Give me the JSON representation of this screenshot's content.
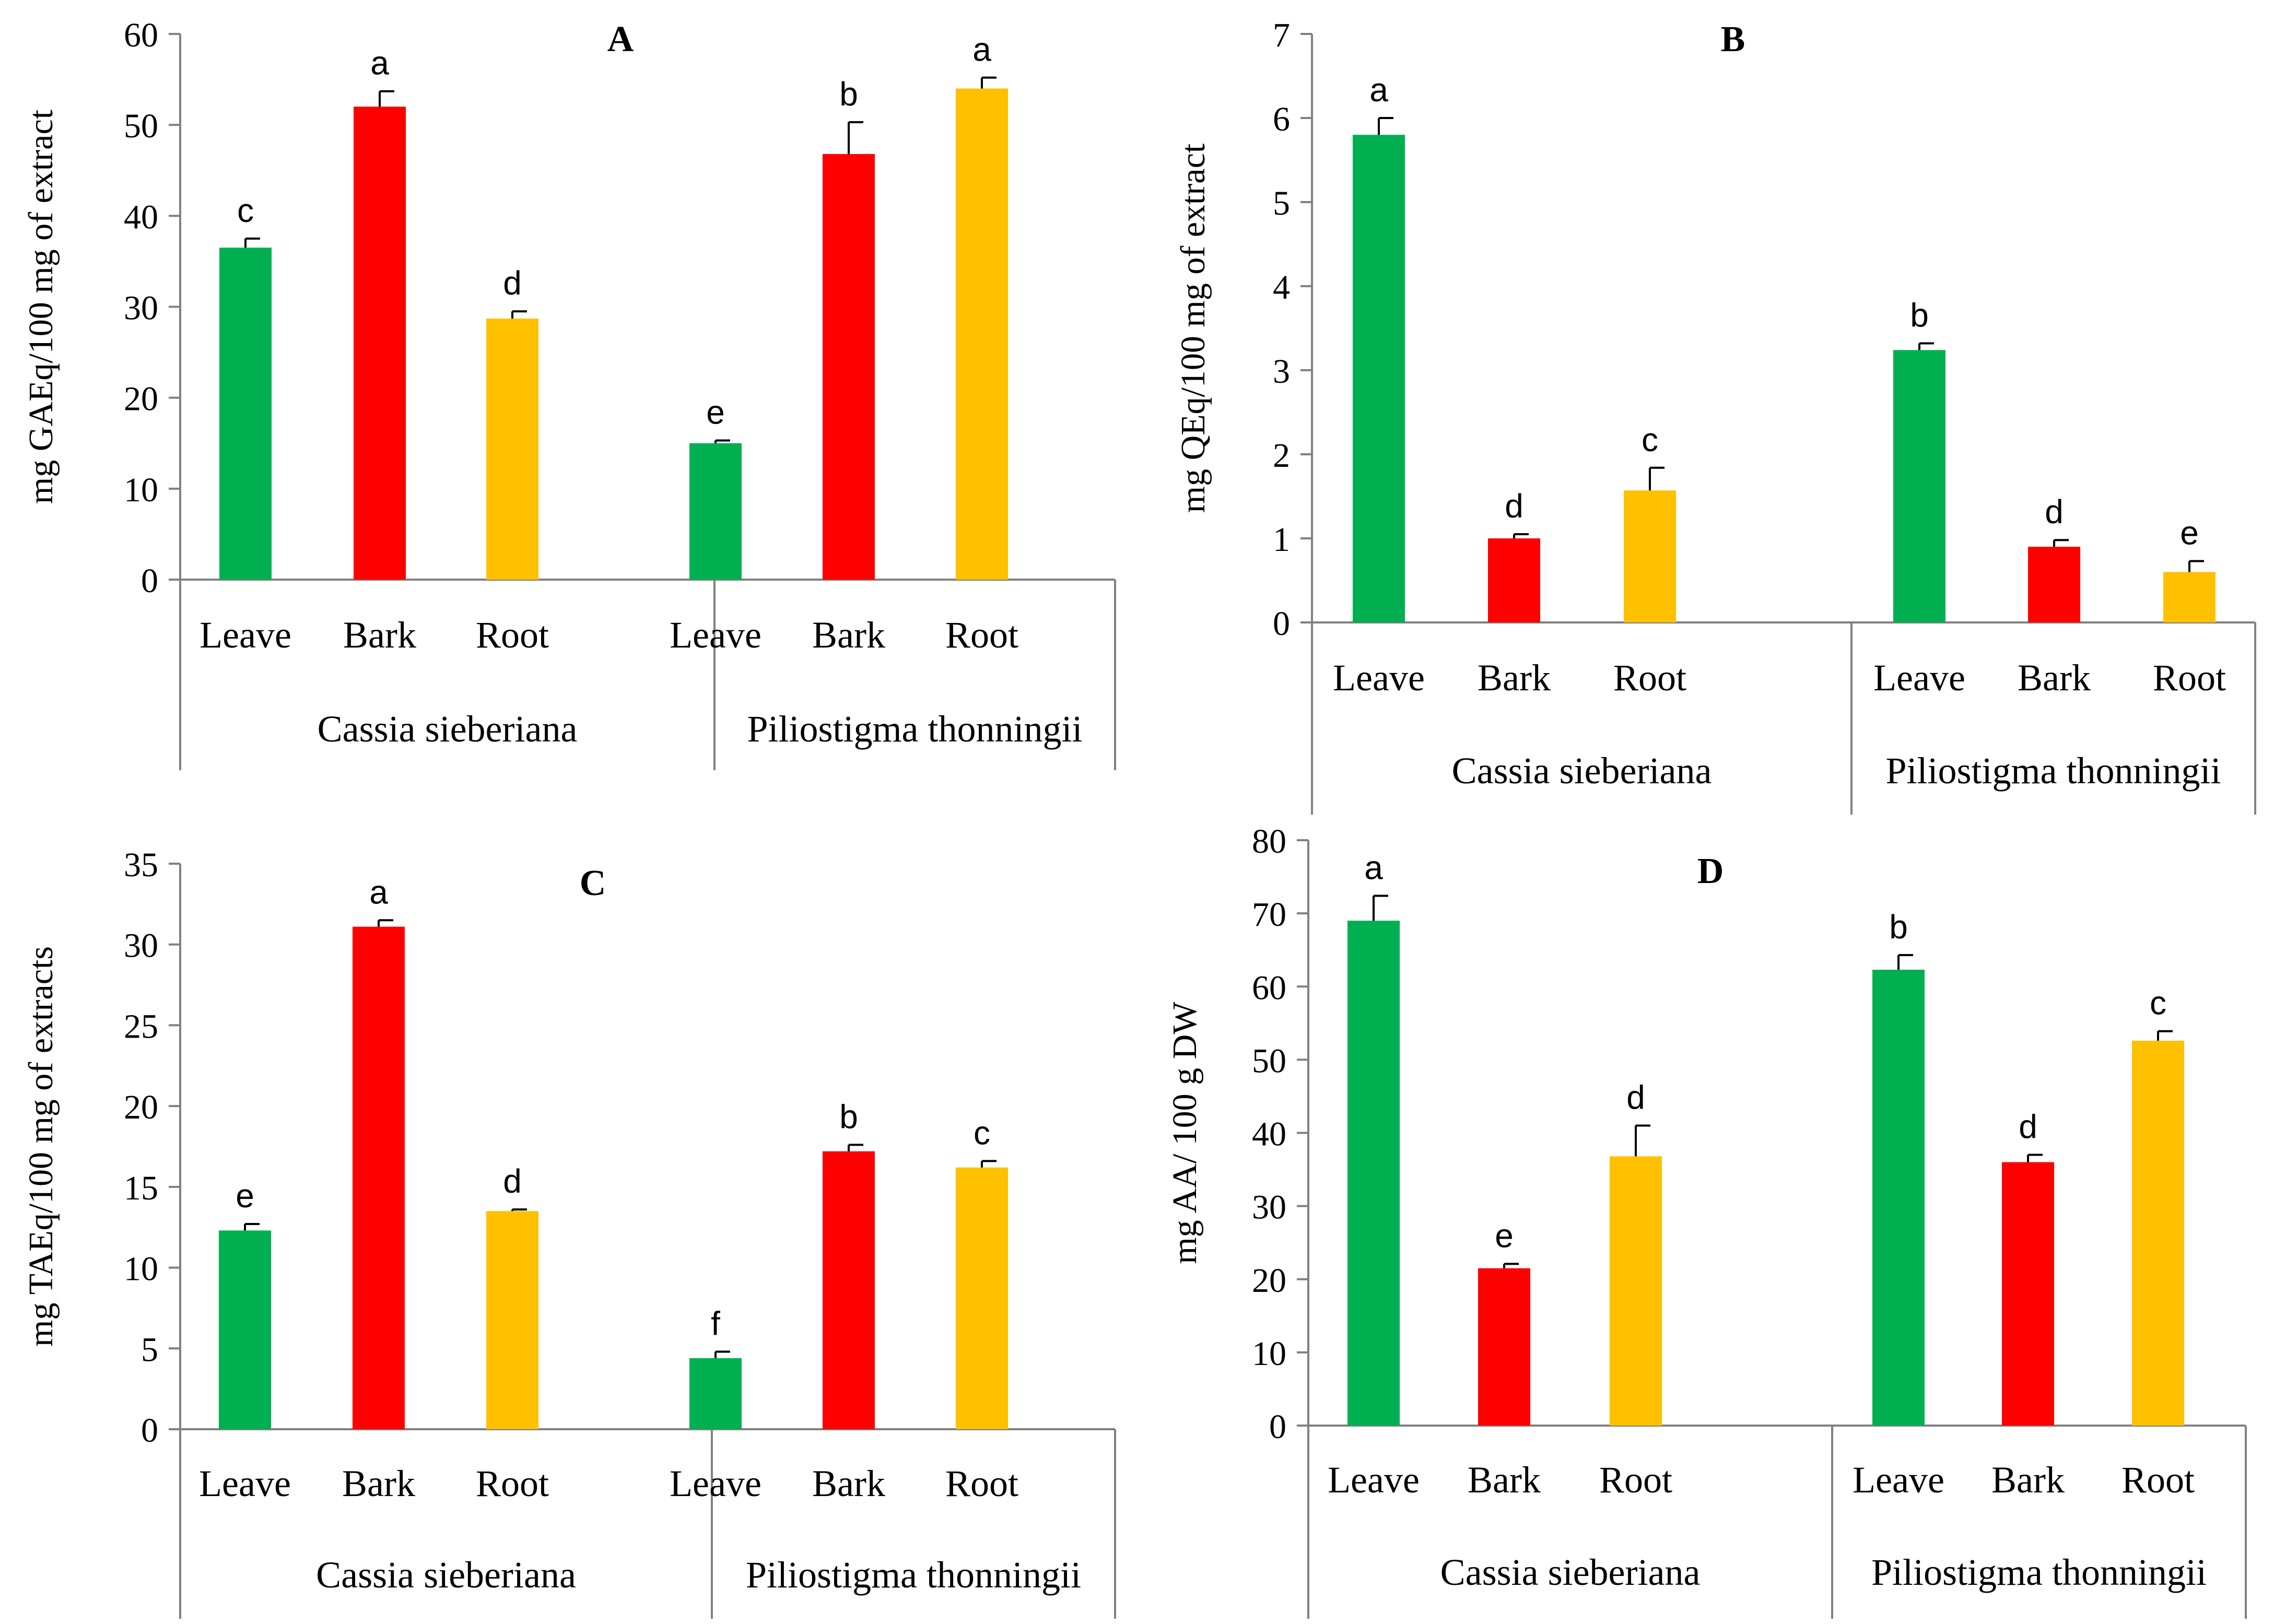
{
  "colors": {
    "leave": "#00b050",
    "bark": "#ff0000",
    "root": "#ffc000",
    "axis": "#808080",
    "text": "#000000"
  },
  "chart_data": [
    {
      "type": "bar",
      "title": "A",
      "ylabel": "mg GAEq/100 mg of extract",
      "ylim": [
        0,
        60
      ],
      "yticks": [
        0,
        10,
        20,
        30,
        40,
        50,
        60
      ],
      "groups": [
        "Cassia sieberiana",
        "Piliostigma thonningii"
      ],
      "categories": [
        "Leave",
        "Bark",
        "Root"
      ],
      "bars": [
        {
          "group": 0,
          "category": 0,
          "value": 36.5,
          "error": 1.0,
          "sig": "c"
        },
        {
          "group": 0,
          "category": 1,
          "value": 52.0,
          "error": 1.7,
          "sig": "a"
        },
        {
          "group": 0,
          "category": 2,
          "value": 28.7,
          "error": 0.8,
          "sig": "d"
        },
        {
          "group": 1,
          "category": 0,
          "value": 15.0,
          "error": 0.3,
          "sig": "e"
        },
        {
          "group": 1,
          "category": 1,
          "value": 46.8,
          "error": 3.5,
          "sig": "b"
        },
        {
          "group": 1,
          "category": 2,
          "value": 54.0,
          "error": 1.2,
          "sig": "a"
        }
      ]
    },
    {
      "type": "bar",
      "title": "B",
      "ylabel": "mg QEq/100 mg of extract",
      "ylim": [
        0,
        7
      ],
      "yticks": [
        0,
        1,
        2,
        3,
        4,
        5,
        6,
        7
      ],
      "groups": [
        "Cassia sieberiana",
        "Piliostigma thonningii"
      ],
      "categories": [
        "Leave",
        "Bark",
        "Root"
      ],
      "bars": [
        {
          "group": 0,
          "category": 0,
          "value": 5.8,
          "error": 0.2,
          "sig": "a"
        },
        {
          "group": 0,
          "category": 1,
          "value": 1.0,
          "error": 0.05,
          "sig": "d"
        },
        {
          "group": 0,
          "category": 2,
          "value": 1.57,
          "error": 0.27,
          "sig": "c"
        },
        {
          "group": 1,
          "category": 0,
          "value": 3.24,
          "error": 0.08,
          "sig": "b"
        },
        {
          "group": 1,
          "category": 1,
          "value": 0.9,
          "error": 0.08,
          "sig": "d"
        },
        {
          "group": 1,
          "category": 2,
          "value": 0.6,
          "error": 0.13,
          "sig": "e"
        }
      ]
    },
    {
      "type": "bar",
      "title": "C",
      "ylabel": "mg TAEq/100 mg of extracts",
      "ylim": [
        0,
        35
      ],
      "yticks": [
        0,
        5,
        10,
        15,
        20,
        25,
        30,
        35
      ],
      "groups": [
        "Cassia sieberiana",
        "Piliostigma thonningii"
      ],
      "categories": [
        "Leave",
        "Bark",
        "Root"
      ],
      "bars": [
        {
          "group": 0,
          "category": 0,
          "value": 12.3,
          "error": 0.4,
          "sig": "e"
        },
        {
          "group": 0,
          "category": 1,
          "value": 31.1,
          "error": 0.4,
          "sig": "a"
        },
        {
          "group": 0,
          "category": 2,
          "value": 13.5,
          "error": 0.1,
          "sig": "d"
        },
        {
          "group": 1,
          "category": 0,
          "value": 4.4,
          "error": 0.4,
          "sig": "f"
        },
        {
          "group": 1,
          "category": 1,
          "value": 17.2,
          "error": 0.4,
          "sig": "b"
        },
        {
          "group": 1,
          "category": 2,
          "value": 16.2,
          "error": 0.4,
          "sig": "c"
        }
      ]
    },
    {
      "type": "bar",
      "title": "D",
      "ylabel": "mg AA/ 100 g DW",
      "ylim": [
        0,
        80
      ],
      "yticks": [
        0,
        10,
        20,
        30,
        40,
        50,
        60,
        70,
        80
      ],
      "groups": [
        "Cassia sieberiana",
        "Piliostigma thonningii"
      ],
      "categories": [
        "Leave",
        "Bark",
        "Root"
      ],
      "bars": [
        {
          "group": 0,
          "category": 0,
          "value": 69.0,
          "error": 3.4,
          "sig": "a"
        },
        {
          "group": 0,
          "category": 1,
          "value": 21.5,
          "error": 0.6,
          "sig": "e"
        },
        {
          "group": 0,
          "category": 2,
          "value": 36.8,
          "error": 4.2,
          "sig": "d"
        },
        {
          "group": 1,
          "category": 0,
          "value": 62.3,
          "error": 2.0,
          "sig": "b"
        },
        {
          "group": 1,
          "category": 1,
          "value": 36.0,
          "error": 1.0,
          "sig": "d"
        },
        {
          "group": 1,
          "category": 2,
          "value": 52.6,
          "error": 1.3,
          "sig": "c"
        }
      ]
    }
  ]
}
